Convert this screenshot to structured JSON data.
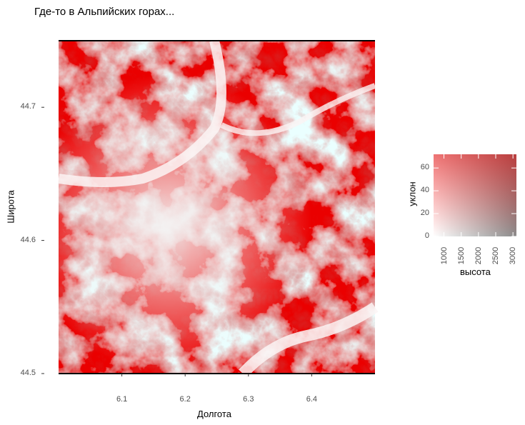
{
  "title": "Где-то в Альпийских горах...",
  "chart_data": {
    "type": "heatmap",
    "subtype": "bivariate raster map",
    "xlabel": "Долгота",
    "ylabel": "Широта",
    "xlim": [
      6.0,
      6.5
    ],
    "ylim": [
      44.5,
      44.75
    ],
    "x_ticks": [
      "6.1",
      "6.2",
      "6.3",
      "6.4"
    ],
    "y_ticks": [
      "44.5",
      "44.6",
      "44.7"
    ],
    "legend": {
      "placement": "right",
      "xlabel": "высота",
      "ylabel": "уклон",
      "x_ticks": [
        "1000",
        "1500",
        "2000",
        "2500",
        "3000"
      ],
      "y_ticks": [
        "0",
        "20",
        "40",
        "60"
      ],
      "xlim": [
        700,
        3100
      ],
      "ylim": [
        0,
        72
      ],
      "corner_colors": {
        "low_low": "#ffffff",
        "high_low": "#8a8a8a",
        "low_high": "#ff8080",
        "high_high": "#800000"
      }
    }
  }
}
